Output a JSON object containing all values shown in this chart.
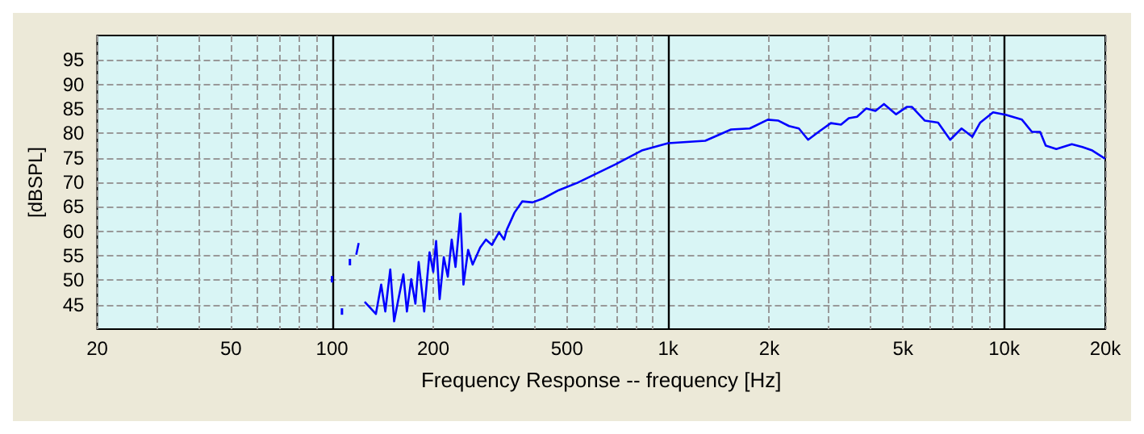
{
  "chart_data": {
    "type": "line",
    "xlabel": "Frequency Response -- frequency [Hz]",
    "ylabel": "[dBSPL]",
    "log": "x",
    "grid": true,
    "xlim": [
      20,
      20000
    ],
    "xticks": [
      20,
      {
        "value": 30,
        "label": null
      },
      {
        "value": 40,
        "label": null
      },
      50,
      {
        "value": 60,
        "label": null
      },
      {
        "value": 70,
        "label": null
      },
      {
        "value": 80,
        "label": null
      },
      {
        "value": 90,
        "label": null
      },
      100,
      200,
      {
        "value": 300,
        "label": null
      },
      {
        "value": 400,
        "label": null
      },
      500,
      {
        "value": 600,
        "label": null
      },
      {
        "value": 700,
        "label": null
      },
      {
        "value": 800,
        "label": null
      },
      {
        "value": 900,
        "label": null
      },
      {
        "value": 1000,
        "label": "1k"
      },
      {
        "value": 2000,
        "label": "2k"
      },
      {
        "value": 3000,
        "label": null
      },
      {
        "value": 4000,
        "label": null
      },
      {
        "value": 5000,
        "label": "5k"
      },
      {
        "value": 6000,
        "label": null
      },
      {
        "value": 7000,
        "label": null
      },
      {
        "value": 8000,
        "label": null
      },
      {
        "value": 9000,
        "label": null
      },
      {
        "value": 10000,
        "label": "10k"
      },
      {
        "value": 20000,
        "label": "20k"
      }
    ],
    "ylim": [
      40,
      100
    ],
    "yticks": [
      45,
      50,
      55,
      60,
      65,
      70,
      75,
      80,
      85,
      90,
      95
    ],
    "series": [
      {
        "color": "#0000ff",
        "x": [
          100,
          102,
          107,
          109,
          113,
          115,
          118,
          120,
          122,
          125,
          135,
          140,
          144,
          149,
          153,
          157,
          163,
          167,
          172,
          177,
          181,
          188,
          195,
          200,
          204,
          209,
          215,
          221,
          227,
          233,
          241,
          246,
          254,
          262,
          276,
          287,
          299,
          314,
          325,
          331,
          349,
          368,
          395,
          425,
          473,
          537,
          698,
          835,
          1000,
          1290,
          1540,
          1750,
          1980,
          2130,
          2290,
          2450,
          2610,
          2830,
          3050,
          3270,
          3450,
          3650,
          3890,
          4140,
          4390,
          4770,
          5130,
          5320,
          5810,
          6360,
          6910,
          7470,
          8040,
          8490,
          9270,
          10100,
          11300,
          12100,
          12800,
          13300,
          14300,
          15900,
          17100,
          18300,
          20000
        ],
        "values": [
          50.2,
          null,
          43.6,
          null,
          53.7,
          null,
          55.2,
          57.6,
          null,
          45.6,
          43.1,
          49.1,
          43.6,
          52.2,
          41.6,
          45.6,
          51.2,
          43.6,
          50.2,
          45.2,
          53.7,
          43.6,
          55.7,
          51.7,
          58,
          46.1,
          54.7,
          50.7,
          58.3,
          52.7,
          63.6,
          49.1,
          56.2,
          53.2,
          56.7,
          58.3,
          57.2,
          59.8,
          58.3,
          60.3,
          63.8,
          66.1,
          65.9,
          66.7,
          68.4,
          69.9,
          73.7,
          76.5,
          78,
          78.5,
          80.8,
          81,
          82.8,
          82.6,
          81.5,
          81,
          78.7,
          80.5,
          82.1,
          81.8,
          83.1,
          83.4,
          85.1,
          84.6,
          86,
          83.9,
          85.4,
          85.4,
          82.6,
          82.2,
          78.7,
          81,
          79.3,
          82.2,
          84.3,
          83.8,
          82.8,
          80.3,
          80.3,
          77.5,
          76.8,
          77.8,
          77.2,
          76.5,
          74.8
        ]
      }
    ]
  }
}
